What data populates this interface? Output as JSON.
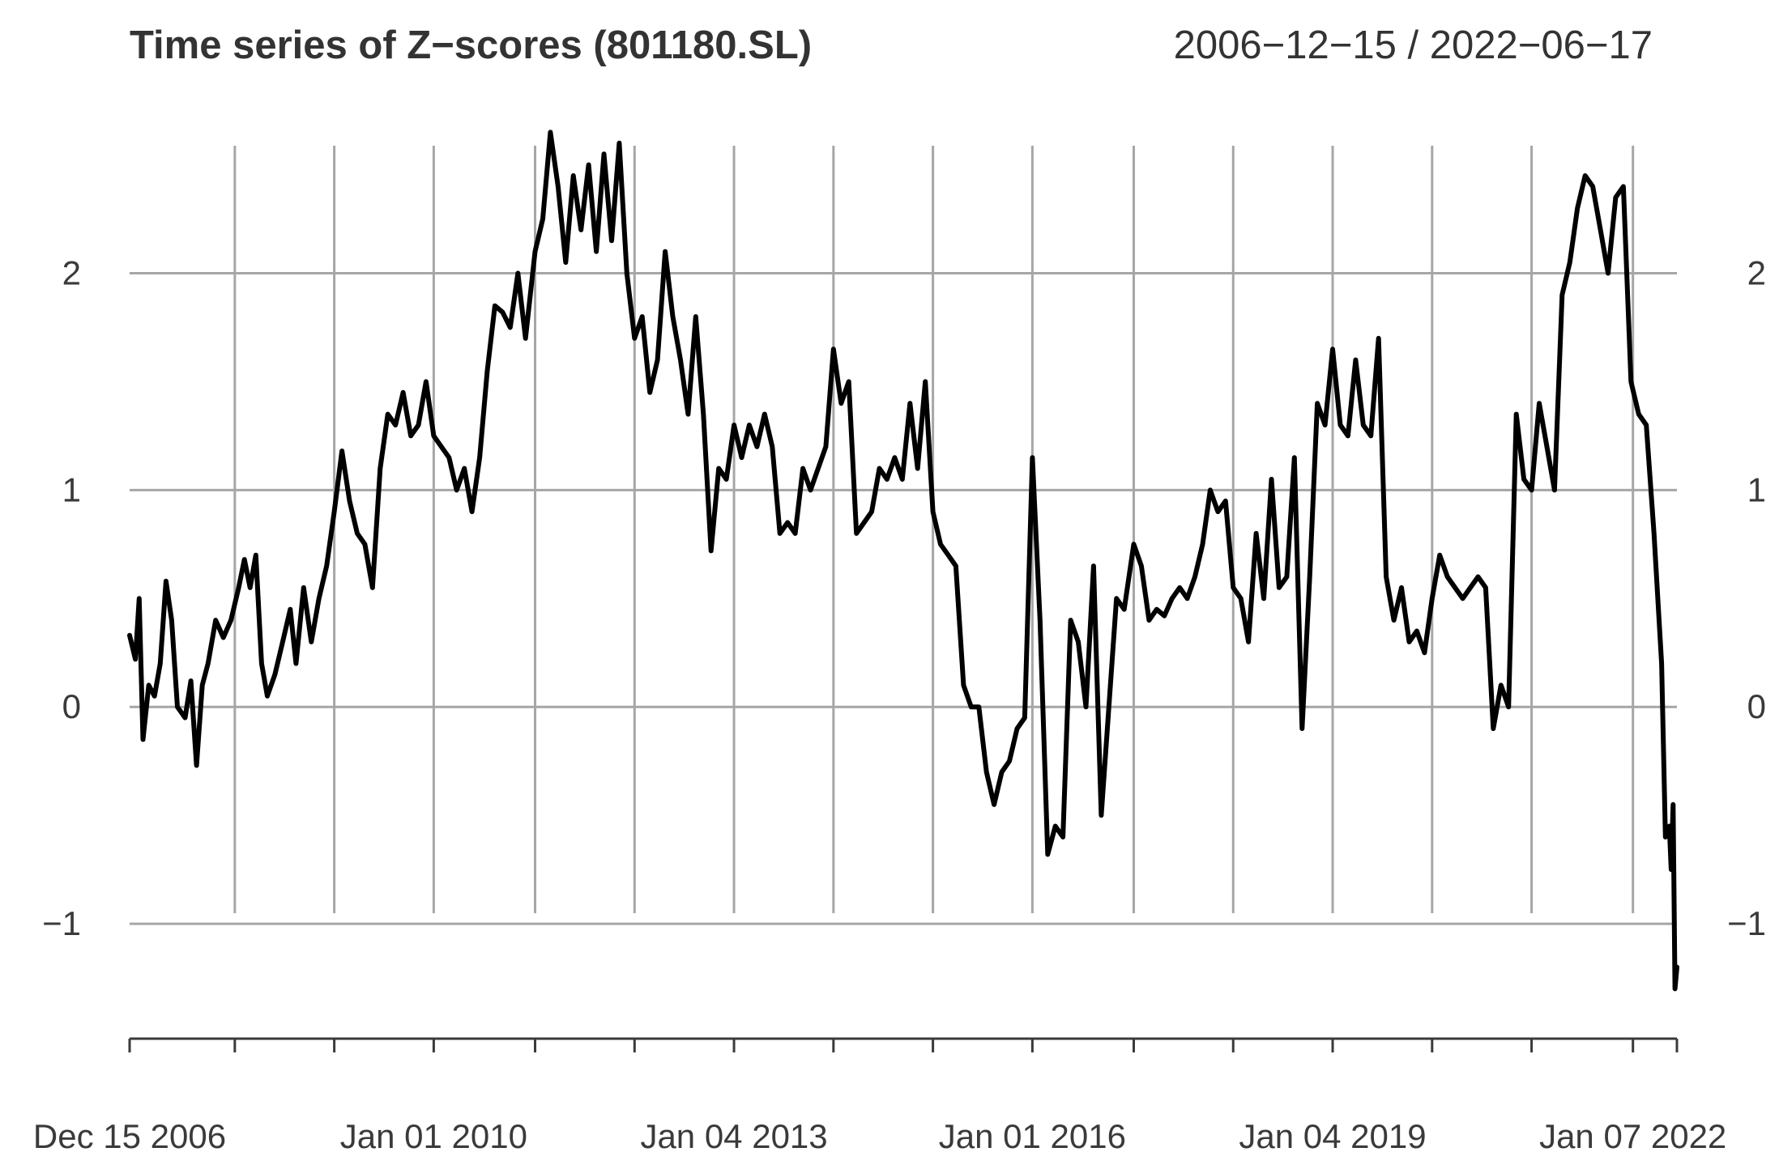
{
  "chart_data": {
    "type": "line",
    "title": "Time series of Z−scores (801180.SL)",
    "date_range_label": "2006−12−15 / 2022−06−17",
    "xlabel": "",
    "ylabel": "",
    "xlim": [
      "2006-12-15",
      "2022-06-17"
    ],
    "ylim": [
      -1.5,
      2.7
    ],
    "y_ticks": [
      {
        "value": -1,
        "label": "−1"
      },
      {
        "value": 0,
        "label": "0"
      },
      {
        "value": 1,
        "label": "1"
      },
      {
        "value": 2,
        "label": "2"
      }
    ],
    "x_tick_labels": [
      {
        "date": "2006-12-15",
        "label": "Dec 15 2006"
      },
      {
        "date": "2010-01-01",
        "label": "Jan 01 2010"
      },
      {
        "date": "2013-01-04",
        "label": "Jan 04 2013"
      },
      {
        "date": "2016-01-01",
        "label": "Jan 01 2016"
      },
      {
        "date": "2019-01-04",
        "label": "Jan 04 2019"
      },
      {
        "date": "2022-01-07",
        "label": "Jan 07 2022"
      }
    ],
    "x_gridlines": [
      "2008-01-04",
      "2009-01-02",
      "2010-01-01",
      "2011-01-07",
      "2012-01-06",
      "2013-01-04",
      "2014-01-03",
      "2015-01-02",
      "2016-01-01",
      "2017-01-06",
      "2018-01-05",
      "2019-01-04",
      "2020-01-03",
      "2021-01-01",
      "2022-01-07"
    ],
    "y_gridlines": [
      -1,
      0,
      1,
      2
    ],
    "grid": true,
    "right_axis_labels": true,
    "series": [
      {
        "color": "#000000",
        "points": [
          [
            "2006-12-15",
            0.33
          ],
          [
            "2007-01-05",
            0.22
          ],
          [
            "2007-01-19",
            0.5
          ],
          [
            "2007-02-02",
            -0.15
          ],
          [
            "2007-02-23",
            0.1
          ],
          [
            "2007-03-16",
            0.05
          ],
          [
            "2007-04-06",
            0.2
          ],
          [
            "2007-04-27",
            0.58
          ],
          [
            "2007-05-18",
            0.4
          ],
          [
            "2007-06-08",
            0.0
          ],
          [
            "2007-07-06",
            -0.05
          ],
          [
            "2007-07-27",
            0.12
          ],
          [
            "2007-08-17",
            -0.27
          ],
          [
            "2007-09-07",
            0.1
          ],
          [
            "2007-09-28",
            0.2
          ],
          [
            "2007-10-26",
            0.4
          ],
          [
            "2007-11-23",
            0.32
          ],
          [
            "2007-12-21",
            0.4
          ],
          [
            "2008-01-18",
            0.55
          ],
          [
            "2008-02-08",
            0.68
          ],
          [
            "2008-02-29",
            0.55
          ],
          [
            "2008-03-21",
            0.7
          ],
          [
            "2008-04-11",
            0.2
          ],
          [
            "2008-05-02",
            0.05
          ],
          [
            "2008-05-30",
            0.15
          ],
          [
            "2008-06-27",
            0.3
          ],
          [
            "2008-07-25",
            0.45
          ],
          [
            "2008-08-15",
            0.2
          ],
          [
            "2008-09-12",
            0.55
          ],
          [
            "2008-10-10",
            0.3
          ],
          [
            "2008-11-07",
            0.5
          ],
          [
            "2008-12-05",
            0.65
          ],
          [
            "2009-01-02",
            0.9
          ],
          [
            "2009-01-30",
            1.18
          ],
          [
            "2009-02-27",
            0.95
          ],
          [
            "2009-03-27",
            0.8
          ],
          [
            "2009-04-24",
            0.75
          ],
          [
            "2009-05-22",
            0.55
          ],
          [
            "2009-06-19",
            1.1
          ],
          [
            "2009-07-17",
            1.35
          ],
          [
            "2009-08-14",
            1.3
          ],
          [
            "2009-09-11",
            1.45
          ],
          [
            "2009-10-09",
            1.25
          ],
          [
            "2009-11-06",
            1.3
          ],
          [
            "2009-12-04",
            1.5
          ],
          [
            "2010-01-01",
            1.25
          ],
          [
            "2010-01-29",
            1.2
          ],
          [
            "2010-02-26",
            1.15
          ],
          [
            "2010-03-26",
            1.0
          ],
          [
            "2010-04-23",
            1.1
          ],
          [
            "2010-05-21",
            0.9
          ],
          [
            "2010-06-18",
            1.15
          ],
          [
            "2010-07-16",
            1.55
          ],
          [
            "2010-08-13",
            1.85
          ],
          [
            "2010-09-10",
            1.82
          ],
          [
            "2010-10-08",
            1.75
          ],
          [
            "2010-11-05",
            2.0
          ],
          [
            "2010-12-03",
            1.7
          ],
          [
            "2011-01-07",
            2.1
          ],
          [
            "2011-02-04",
            2.25
          ],
          [
            "2011-03-04",
            2.65
          ],
          [
            "2011-04-01",
            2.4
          ],
          [
            "2011-04-29",
            2.05
          ],
          [
            "2011-05-27",
            2.45
          ],
          [
            "2011-06-24",
            2.2
          ],
          [
            "2011-07-22",
            2.5
          ],
          [
            "2011-08-19",
            2.1
          ],
          [
            "2011-09-16",
            2.55
          ],
          [
            "2011-10-14",
            2.15
          ],
          [
            "2011-11-11",
            2.6
          ],
          [
            "2011-12-09",
            2.0
          ],
          [
            "2012-01-06",
            1.7
          ],
          [
            "2012-02-03",
            1.8
          ],
          [
            "2012-03-02",
            1.45
          ],
          [
            "2012-03-30",
            1.6
          ],
          [
            "2012-04-27",
            2.1
          ],
          [
            "2012-05-25",
            1.8
          ],
          [
            "2012-06-22",
            1.6
          ],
          [
            "2012-07-20",
            1.35
          ],
          [
            "2012-08-17",
            1.8
          ],
          [
            "2012-09-14",
            1.35
          ],
          [
            "2012-10-12",
            0.72
          ],
          [
            "2012-11-09",
            1.1
          ],
          [
            "2012-12-07",
            1.05
          ],
          [
            "2013-01-04",
            1.3
          ],
          [
            "2013-02-01",
            1.15
          ],
          [
            "2013-03-01",
            1.3
          ],
          [
            "2013-03-29",
            1.2
          ],
          [
            "2013-04-26",
            1.35
          ],
          [
            "2013-05-24",
            1.2
          ],
          [
            "2013-06-21",
            0.8
          ],
          [
            "2013-07-19",
            0.85
          ],
          [
            "2013-08-16",
            0.8
          ],
          [
            "2013-09-13",
            1.1
          ],
          [
            "2013-10-11",
            1.0
          ],
          [
            "2013-11-08",
            1.1
          ],
          [
            "2013-12-06",
            1.2
          ],
          [
            "2014-01-03",
            1.65
          ],
          [
            "2014-01-31",
            1.4
          ],
          [
            "2014-02-28",
            1.5
          ],
          [
            "2014-03-28",
            0.8
          ],
          [
            "2014-04-25",
            0.85
          ],
          [
            "2014-05-23",
            0.9
          ],
          [
            "2014-06-20",
            1.1
          ],
          [
            "2014-07-18",
            1.05
          ],
          [
            "2014-08-15",
            1.15
          ],
          [
            "2014-09-12",
            1.05
          ],
          [
            "2014-10-10",
            1.4
          ],
          [
            "2014-11-07",
            1.1
          ],
          [
            "2014-12-05",
            1.5
          ],
          [
            "2015-01-02",
            0.9
          ],
          [
            "2015-01-30",
            0.75
          ],
          [
            "2015-02-27",
            0.7
          ],
          [
            "2015-03-27",
            0.65
          ],
          [
            "2015-04-24",
            0.1
          ],
          [
            "2015-05-22",
            0.0
          ],
          [
            "2015-06-19",
            0.0
          ],
          [
            "2015-07-17",
            -0.3
          ],
          [
            "2015-08-14",
            -0.45
          ],
          [
            "2015-09-11",
            -0.3
          ],
          [
            "2015-10-09",
            -0.25
          ],
          [
            "2015-11-06",
            -0.1
          ],
          [
            "2015-12-04",
            -0.05
          ],
          [
            "2016-01-01",
            1.15
          ],
          [
            "2016-01-29",
            0.4
          ],
          [
            "2016-02-26",
            -0.68
          ],
          [
            "2016-03-25",
            -0.55
          ],
          [
            "2016-04-22",
            -0.6
          ],
          [
            "2016-05-20",
            0.4
          ],
          [
            "2016-06-17",
            0.3
          ],
          [
            "2016-07-15",
            0.0
          ],
          [
            "2016-08-12",
            0.65
          ],
          [
            "2016-09-09",
            -0.5
          ],
          [
            "2016-10-07",
            0.0
          ],
          [
            "2016-11-04",
            0.5
          ],
          [
            "2016-12-02",
            0.45
          ],
          [
            "2017-01-06",
            0.75
          ],
          [
            "2017-02-03",
            0.65
          ],
          [
            "2017-03-03",
            0.4
          ],
          [
            "2017-03-31",
            0.45
          ],
          [
            "2017-04-28",
            0.42
          ],
          [
            "2017-05-26",
            0.5
          ],
          [
            "2017-06-23",
            0.55
          ],
          [
            "2017-07-21",
            0.5
          ],
          [
            "2017-08-18",
            0.6
          ],
          [
            "2017-09-15",
            0.75
          ],
          [
            "2017-10-13",
            1.0
          ],
          [
            "2017-11-10",
            0.9
          ],
          [
            "2017-12-08",
            0.95
          ],
          [
            "2018-01-05",
            0.55
          ],
          [
            "2018-02-02",
            0.5
          ],
          [
            "2018-03-02",
            0.3
          ],
          [
            "2018-03-30",
            0.8
          ],
          [
            "2018-04-27",
            0.5
          ],
          [
            "2018-05-25",
            1.05
          ],
          [
            "2018-06-22",
            0.55
          ],
          [
            "2018-07-20",
            0.6
          ],
          [
            "2018-08-17",
            1.15
          ],
          [
            "2018-09-14",
            -0.1
          ],
          [
            "2018-10-12",
            0.6
          ],
          [
            "2018-11-09",
            1.4
          ],
          [
            "2018-12-07",
            1.3
          ],
          [
            "2019-01-04",
            1.65
          ],
          [
            "2019-02-01",
            1.3
          ],
          [
            "2019-03-01",
            1.25
          ],
          [
            "2019-03-29",
            1.6
          ],
          [
            "2019-04-26",
            1.3
          ],
          [
            "2019-05-24",
            1.25
          ],
          [
            "2019-06-21",
            1.7
          ],
          [
            "2019-07-19",
            0.6
          ],
          [
            "2019-08-16",
            0.4
          ],
          [
            "2019-09-13",
            0.55
          ],
          [
            "2019-10-11",
            0.3
          ],
          [
            "2019-11-08",
            0.35
          ],
          [
            "2019-12-06",
            0.25
          ],
          [
            "2020-01-03",
            0.5
          ],
          [
            "2020-01-31",
            0.7
          ],
          [
            "2020-02-28",
            0.6
          ],
          [
            "2020-03-27",
            0.55
          ],
          [
            "2020-04-24",
            0.5
          ],
          [
            "2020-05-22",
            0.55
          ],
          [
            "2020-06-19",
            0.6
          ],
          [
            "2020-07-17",
            0.55
          ],
          [
            "2020-08-14",
            -0.1
          ],
          [
            "2020-09-11",
            0.1
          ],
          [
            "2020-10-09",
            0.0
          ],
          [
            "2020-11-06",
            1.35
          ],
          [
            "2020-12-04",
            1.05
          ],
          [
            "2021-01-01",
            1.0
          ],
          [
            "2021-01-29",
            1.4
          ],
          [
            "2021-02-26",
            1.2
          ],
          [
            "2021-03-26",
            1.0
          ],
          [
            "2021-04-23",
            1.9
          ],
          [
            "2021-05-21",
            2.05
          ],
          [
            "2021-06-18",
            2.3
          ],
          [
            "2021-07-16",
            2.45
          ],
          [
            "2021-08-13",
            2.4
          ],
          [
            "2021-09-10",
            2.2
          ],
          [
            "2021-10-08",
            2.0
          ],
          [
            "2021-11-05",
            2.35
          ],
          [
            "2021-12-03",
            2.4
          ],
          [
            "2021-12-31",
            1.5
          ],
          [
            "2022-01-28",
            1.35
          ],
          [
            "2022-02-25",
            1.3
          ],
          [
            "2022-03-25",
            0.8
          ],
          [
            "2022-04-22",
            0.2
          ],
          [
            "2022-05-06",
            -0.6
          ],
          [
            "2022-05-20",
            -0.55
          ],
          [
            "2022-05-27",
            -0.75
          ],
          [
            "2022-06-03",
            -0.45
          ],
          [
            "2022-06-10",
            -1.3
          ],
          [
            "2022-06-17",
            -1.2
          ]
        ]
      }
    ]
  }
}
